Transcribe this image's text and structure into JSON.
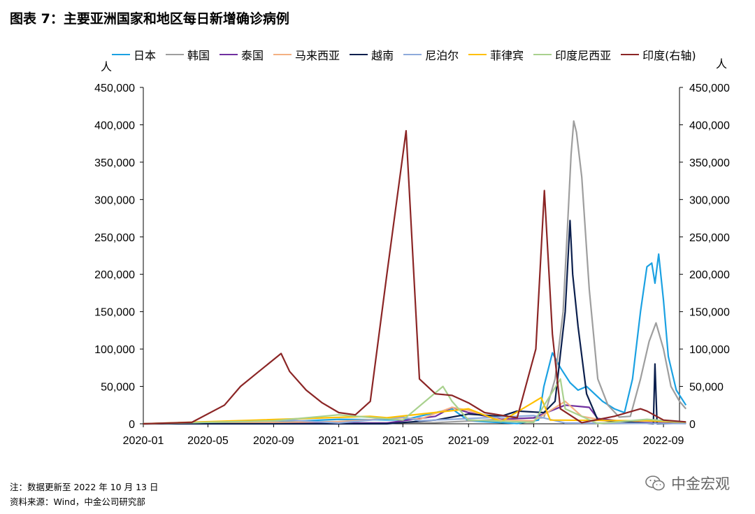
{
  "title": "图表 7：主要亚洲国家和地区每日新增确诊病例",
  "units": {
    "left": "人",
    "right": "人"
  },
  "footnotes": {
    "note": "注：数据更新至 2022 年 10 月 13 日",
    "source": "资料来源：Wind，中金公司研究部"
  },
  "watermark": {
    "text": "中金宏观",
    "icon": "wechat-icon"
  },
  "chart_data": {
    "type": "line",
    "title": "图表 7：主要亚洲国家和地区每日新增确诊病例",
    "x_ticks": [
      "2020-01",
      "2020-05",
      "2020-09",
      "2021-01",
      "2021-05",
      "2021-09",
      "2022-01",
      "2022-05",
      "2022-09"
    ],
    "y_ticks": [
      "0",
      "50,000",
      "100,000",
      "150,000",
      "200,000",
      "250,000",
      "300,000",
      "350,000",
      "400,000",
      "450,000"
    ],
    "y2_ticks": [
      "0",
      "50,000",
      "100,000",
      "150,000",
      "200,000",
      "250,000",
      "300,000",
      "350,000",
      "400,000",
      "450,000"
    ],
    "ylim": [
      0,
      450000
    ],
    "y2lim": [
      0,
      450000
    ],
    "xlim": [
      "2020-01",
      "2022-10"
    ],
    "grid": false,
    "legend_position": "top",
    "series": [
      {
        "name": "日本",
        "color": "#1ba1e2",
        "axis": "left",
        "points": [
          [
            "2020-01",
            0
          ],
          [
            "2020-04",
            500
          ],
          [
            "2020-08",
            1300
          ],
          [
            "2021-01",
            6000
          ],
          [
            "2021-05",
            5000
          ],
          [
            "2021-08",
            20000
          ],
          [
            "2021-09",
            4000
          ],
          [
            "2021-12",
            300
          ],
          [
            "2022-01-10",
            5000
          ],
          [
            "2022-01-20",
            50000
          ],
          [
            "2022-02-05",
            95000
          ],
          [
            "2022-02-20",
            75000
          ],
          [
            "2022-03-10",
            55000
          ],
          [
            "2022-03-25",
            45000
          ],
          [
            "2022-04-10",
            50000
          ],
          [
            "2022-04-25",
            40000
          ],
          [
            "2022-05-10",
            30000
          ],
          [
            "2022-06-01",
            20000
          ],
          [
            "2022-06-20",
            15000
          ],
          [
            "2022-07-05",
            60000
          ],
          [
            "2022-07-20",
            150000
          ],
          [
            "2022-08-01",
            210000
          ],
          [
            "2022-08-10",
            215000
          ],
          [
            "2022-08-16",
            188000
          ],
          [
            "2022-08-23",
            227000
          ],
          [
            "2022-09-01",
            165000
          ],
          [
            "2022-09-10",
            90000
          ],
          [
            "2022-09-25",
            45000
          ],
          [
            "2022-10-13",
            25000
          ]
        ]
      },
      {
        "name": "韩国",
        "color": "#9e9e9e",
        "axis": "left",
        "points": [
          [
            "2020-01",
            0
          ],
          [
            "2020-03",
            800
          ],
          [
            "2020-12",
            1000
          ],
          [
            "2021-07",
            1500
          ],
          [
            "2021-12",
            7000
          ],
          [
            "2022-01-20",
            8000
          ],
          [
            "2022-02-10",
            60000
          ],
          [
            "2022-02-25",
            150000
          ],
          [
            "2022-03-05",
            260000
          ],
          [
            "2022-03-12",
            360000
          ],
          [
            "2022-03-17",
            405000
          ],
          [
            "2022-03-22",
            390000
          ],
          [
            "2022-04-01",
            330000
          ],
          [
            "2022-04-15",
            180000
          ],
          [
            "2022-05-01",
            60000
          ],
          [
            "2022-05-20",
            25000
          ],
          [
            "2022-06-10",
            9000
          ],
          [
            "2022-07-01",
            10000
          ],
          [
            "2022-07-20",
            60000
          ],
          [
            "2022-08-05",
            110000
          ],
          [
            "2022-08-18",
            135000
          ],
          [
            "2022-09-01",
            100000
          ],
          [
            "2022-09-15",
            50000
          ],
          [
            "2022-10-01",
            30000
          ],
          [
            "2022-10-13",
            20000
          ]
        ]
      },
      {
        "name": "泰国",
        "color": "#7030a0",
        "axis": "left",
        "points": [
          [
            "2020-01",
            0
          ],
          [
            "2021-04",
            1000
          ],
          [
            "2021-07",
            10000
          ],
          [
            "2021-08",
            22000
          ],
          [
            "2021-09",
            15000
          ],
          [
            "2021-11",
            6000
          ],
          [
            "2022-01",
            8000
          ],
          [
            "2022-03",
            25000
          ],
          [
            "2022-04-15",
            22000
          ],
          [
            "2022-05",
            7000
          ],
          [
            "2022-07",
            2000
          ],
          [
            "2022-10-13",
            500
          ]
        ]
      },
      {
        "name": "马来西亚",
        "color": "#f4b183",
        "axis": "left",
        "points": [
          [
            "2020-01",
            0
          ],
          [
            "2021-01",
            3000
          ],
          [
            "2021-05",
            8000
          ],
          [
            "2021-06",
            6000
          ],
          [
            "2021-08",
            22000
          ],
          [
            "2021-09",
            18000
          ],
          [
            "2021-11",
            5000
          ],
          [
            "2022-01",
            4000
          ],
          [
            "2022-03",
            30000
          ],
          [
            "2022-04",
            10000
          ],
          [
            "2022-06",
            2000
          ],
          [
            "2022-08",
            4500
          ],
          [
            "2022-10-13",
            2000
          ]
        ]
      },
      {
        "name": "越南",
        "color": "#0b1f4d",
        "axis": "left",
        "points": [
          [
            "2020-01",
            0
          ],
          [
            "2021-04",
            0
          ],
          [
            "2021-07",
            5000
          ],
          [
            "2021-09",
            13000
          ],
          [
            "2021-11",
            10000
          ],
          [
            "2021-12",
            17000
          ],
          [
            "2022-01-20",
            15000
          ],
          [
            "2022-02-10",
            30000
          ],
          [
            "2022-03-01",
            150000
          ],
          [
            "2022-03-10",
            272000
          ],
          [
            "2022-03-15",
            200000
          ],
          [
            "2022-03-25",
            130000
          ],
          [
            "2022-04-10",
            40000
          ],
          [
            "2022-05",
            5000
          ],
          [
            "2022-08-13",
            0
          ],
          [
            "2022-08-16",
            80000
          ],
          [
            "2022-08-20",
            0
          ],
          [
            "2022-10-13",
            1000
          ]
        ]
      },
      {
        "name": "尼泊尔",
        "color": "#8eaadb",
        "axis": "left",
        "points": [
          [
            "2020-01",
            0
          ],
          [
            "2020-10",
            5000
          ],
          [
            "2021-01",
            1000
          ],
          [
            "2021-05",
            9000
          ],
          [
            "2021-06",
            4000
          ],
          [
            "2022-01",
            11000
          ],
          [
            "2022-03",
            1000
          ],
          [
            "2022-10-13",
            300
          ]
        ]
      },
      {
        "name": "菲律宾",
        "color": "#ffc000",
        "axis": "left",
        "points": [
          [
            "2020-01",
            0
          ],
          [
            "2020-08",
            5000
          ],
          [
            "2021-03",
            10000
          ],
          [
            "2021-04",
            8000
          ],
          [
            "2021-09",
            20000
          ],
          [
            "2021-11",
            3000
          ],
          [
            "2022-01-15",
            35000
          ],
          [
            "2022-02",
            5000
          ],
          [
            "2022-08",
            4000
          ],
          [
            "2022-10-13",
            2000
          ]
        ]
      },
      {
        "name": "印度尼西亚",
        "color": "#a9d18e",
        "axis": "left",
        "points": [
          [
            "2020-01",
            0
          ],
          [
            "2020-09",
            4000
          ],
          [
            "2021-01",
            12000
          ],
          [
            "2021-05",
            5000
          ],
          [
            "2021-07-15",
            50000
          ],
          [
            "2021-08",
            30000
          ],
          [
            "2021-09",
            5000
          ],
          [
            "2022-01",
            2000
          ],
          [
            "2022-02-20",
            60000
          ],
          [
            "2022-03",
            20000
          ],
          [
            "2022-05",
            300
          ],
          [
            "2022-08",
            6000
          ],
          [
            "2022-10-13",
            2000
          ]
        ]
      },
      {
        "name": "印度(右轴)",
        "color": "#8b2525",
        "axis": "right",
        "points": [
          [
            "2020-01",
            0
          ],
          [
            "2020-04",
            2000
          ],
          [
            "2020-06",
            25000
          ],
          [
            "2020-07",
            50000
          ],
          [
            "2020-08",
            68000
          ],
          [
            "2020-09-15",
            94000
          ],
          [
            "2020-10",
            70000
          ],
          [
            "2020-11",
            45000
          ],
          [
            "2020-12",
            28000
          ],
          [
            "2021-01",
            15000
          ],
          [
            "2021-02",
            12000
          ],
          [
            "2021-03",
            30000
          ],
          [
            "2021-04",
            200000
          ],
          [
            "2021-05-07",
            392000
          ],
          [
            "2021-06",
            60000
          ],
          [
            "2021-07",
            40000
          ],
          [
            "2021-08",
            38000
          ],
          [
            "2021-09",
            28000
          ],
          [
            "2021-10",
            15000
          ],
          [
            "2021-12",
            8000
          ],
          [
            "2022-01-05",
            100000
          ],
          [
            "2022-01-21",
            312000
          ],
          [
            "2022-02-05",
            120000
          ],
          [
            "2022-02-20",
            20000
          ],
          [
            "2022-04",
            1500
          ],
          [
            "2022-06",
            10000
          ],
          [
            "2022-07-20",
            20000
          ],
          [
            "2022-08",
            17000
          ],
          [
            "2022-09",
            5000
          ],
          [
            "2022-10-13",
            2500
          ]
        ]
      }
    ]
  }
}
